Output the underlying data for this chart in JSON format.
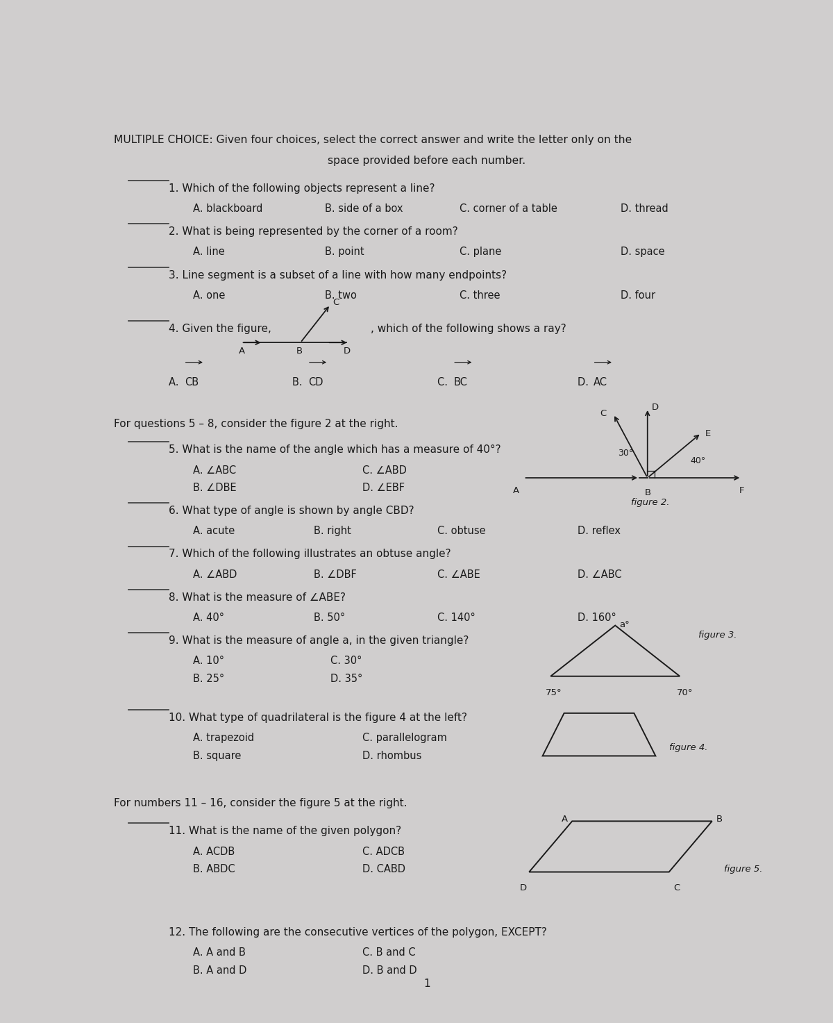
{
  "bg_color": "#d0cece",
  "text_color": "#1a1a1a",
  "title_line1": "MULTIPLE CHOICE: Given four choices, select the correct answer and write the letter only on the",
  "title_line2": "space provided before each number.",
  "fig2_label": "figure 2.",
  "fig3_label": "figure 3.",
  "fig4_label": "figure 4.",
  "fig5_label": "figure 5."
}
